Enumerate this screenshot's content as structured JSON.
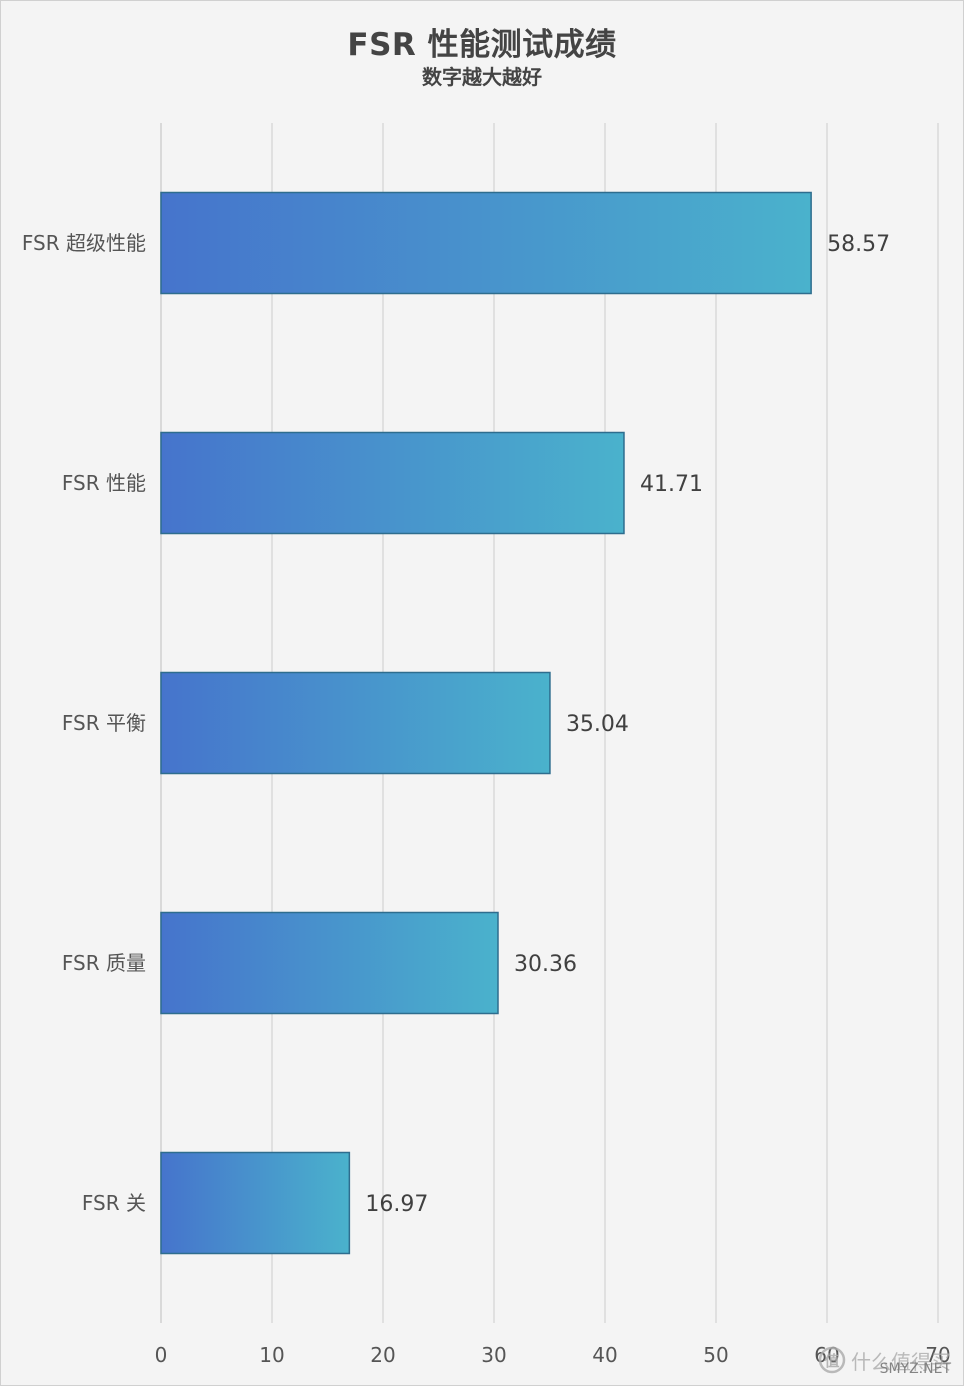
{
  "chart_data": {
    "type": "bar",
    "orientation": "horizontal",
    "title": "FSR 性能测试成绩",
    "subtitle": "数字越大越好",
    "categories": [
      "FSR 超级性能",
      "FSR 性能",
      "FSR 平衡",
      "FSR 质量",
      "FSR 关"
    ],
    "values": [
      58.57,
      41.71,
      35.04,
      30.36,
      16.97
    ],
    "value_labels": [
      "58.57",
      "41.71",
      "35.04",
      "30.36",
      "16.97"
    ],
    "xlim": [
      0,
      70
    ],
    "xticks": [
      0,
      10,
      20,
      30,
      40,
      50,
      60,
      70
    ],
    "xtick_labels": [
      "0",
      "10",
      "20",
      "30",
      "40",
      "50",
      "60",
      "70"
    ],
    "grid": "vertical",
    "legend": "none",
    "colors": {
      "bar_gradient_start": "#4674cc",
      "bar_gradient_end": "#4ab2cc",
      "bar_border": "#2e6d8e",
      "gridline": "#d9d9d9",
      "background": "#f4f4f4"
    }
  },
  "watermark": {
    "text": "什么值得买",
    "site": "SMYZ.NET",
    "icon": "smzdm-logo-icon"
  }
}
